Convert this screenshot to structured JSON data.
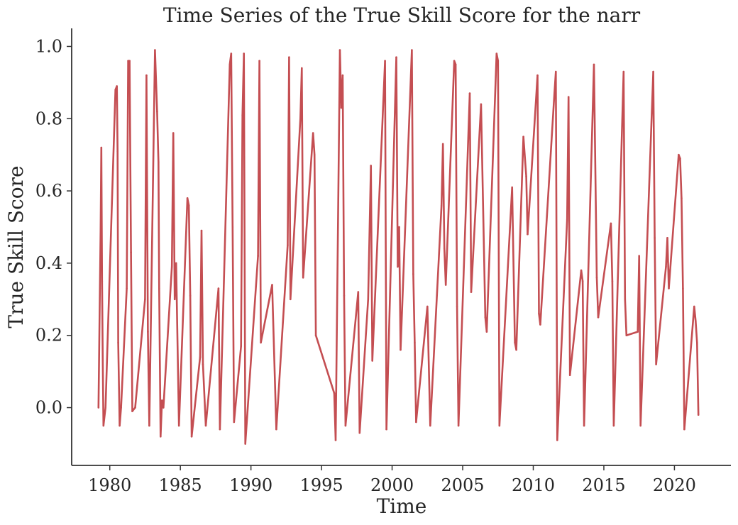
{
  "chart_data": {
    "type": "line",
    "title": "Time Series of the True Skill Score for the narr",
    "xlabel": "Time",
    "ylabel": "True Skill Score",
    "xlim": [
      1977.3,
      2024.0
    ],
    "ylim": [
      -0.16,
      1.05
    ],
    "xticks": [
      1980,
      1985,
      1990,
      1995,
      2000,
      2005,
      2010,
      2015,
      2020
    ],
    "xtick_labels": [
      "1980",
      "1985",
      "1990",
      "1995",
      "2000",
      "2005",
      "2010",
      "2015",
      "2020"
    ],
    "yticks": [
      0.0,
      0.2,
      0.4,
      0.6,
      0.8,
      1.0
    ],
    "ytick_labels": [
      "0.0",
      "0.2",
      "0.4",
      "0.6",
      "0.8",
      "1.0"
    ],
    "grid": false,
    "color": "#c44e52",
    "series": [
      {
        "x": [
          1979.2,
          1979.3,
          1979.35,
          1979.4,
          1979.45,
          1979.5,
          1979.55,
          1979.7,
          1980.4,
          1980.5,
          1980.55,
          1980.6,
          1980.7,
          1980.8,
          1981.2,
          1981.3,
          1981.4,
          1981.5,
          1981.6,
          1981.8,
          1982.5,
          1982.6,
          1982.7,
          1982.8,
          1983.2,
          1983.35,
          1983.45,
          1983.5,
          1983.6,
          1983.7,
          1983.8,
          1984.4,
          1984.5,
          1984.6,
          1984.7,
          1984.9,
          1985.5,
          1985.6,
          1985.7,
          1985.8,
          1986.4,
          1986.5,
          1986.6,
          1986.8,
          1987.7,
          1987.8,
          1988.5,
          1988.6,
          1988.7,
          1988.8,
          1989.3,
          1989.4,
          1989.5,
          1989.6,
          1990.5,
          1990.6,
          1990.7,
          1991.5,
          1991.8,
          1992.6,
          1992.7,
          1992.8,
          1993.5,
          1993.6,
          1993.7,
          1994.4,
          1994.5,
          1994.6,
          1995.9,
          1996.0,
          1996.3,
          1996.4,
          1996.5,
          1996.6,
          1996.7,
          1997.6,
          1997.7,
          1998.3,
          1998.5,
          1998.6,
          1999.5,
          1999.6,
          2000.3,
          2000.4,
          2000.5,
          2000.6,
          2001.4,
          2001.5,
          2001.6,
          2001.7,
          2002.5,
          2002.7,
          2003.5,
          2003.6,
          2003.7,
          2003.8,
          2004.4,
          2004.5,
          2004.6,
          2004.7,
          2005.5,
          2005.6,
          2006.3,
          2006.6,
          2006.7,
          2007.4,
          2007.5,
          2007.6,
          2008.5,
          2008.7,
          2008.8,
          2009.3,
          2009.5,
          2009.6,
          2010.3,
          2010.4,
          2010.5,
          2011.5,
          2011.6,
          2011.7,
          2012.4,
          2012.5,
          2012.6,
          2013.4,
          2013.5,
          2013.6,
          2014.3,
          2014.5,
          2014.6,
          2015.5,
          2015.6,
          2015.7,
          2016.4,
          2016.5,
          2016.6,
          2017.4,
          2017.5,
          2017.6,
          2018.5,
          2018.6,
          2018.7,
          2019.4,
          2019.5,
          2019.6,
          2020.3,
          2020.4,
          2020.5,
          2020.6,
          2020.7,
          2021.4,
          2021.5,
          2021.6,
          2021.7
        ],
        "y": [
          0.0,
          0.33,
          0.49,
          0.72,
          0.35,
          0.13,
          -0.05,
          0.0,
          0.88,
          0.89,
          0.71,
          0.18,
          -0.05,
          0.0,
          0.33,
          0.96,
          0.96,
          0.43,
          -0.01,
          0.0,
          0.3,
          0.92,
          0.21,
          -0.05,
          0.99,
          0.82,
          0.68,
          0.33,
          -0.08,
          0.02,
          0.0,
          0.39,
          0.76,
          0.3,
          0.4,
          -0.05,
          0.58,
          0.56,
          0.31,
          -0.08,
          0.14,
          0.49,
          0.12,
          -0.05,
          0.33,
          -0.06,
          0.95,
          0.98,
          0.5,
          -0.04,
          0.17,
          0.81,
          0.98,
          -0.1,
          0.42,
          0.96,
          0.18,
          0.34,
          -0.06,
          0.45,
          0.97,
          0.3,
          0.8,
          0.94,
          0.36,
          0.76,
          0.7,
          0.2,
          0.04,
          -0.09,
          0.99,
          0.83,
          0.92,
          0.31,
          -0.05,
          0.32,
          -0.07,
          0.3,
          0.67,
          0.13,
          0.96,
          -0.06,
          0.97,
          0.39,
          0.5,
          0.16,
          0.99,
          0.37,
          0.18,
          -0.04,
          0.28,
          -0.05,
          0.56,
          0.73,
          0.44,
          0.34,
          0.96,
          0.95,
          0.28,
          -0.05,
          0.87,
          0.32,
          0.84,
          0.25,
          0.21,
          0.98,
          0.96,
          -0.05,
          0.61,
          0.18,
          0.16,
          0.75,
          0.64,
          0.48,
          0.92,
          0.26,
          0.23,
          0.87,
          0.93,
          -0.09,
          0.52,
          0.86,
          0.09,
          0.38,
          0.35,
          -0.05,
          0.95,
          0.36,
          0.25,
          0.51,
          0.35,
          -0.05,
          0.93,
          0.3,
          0.2,
          0.21,
          0.42,
          -0.05,
          0.93,
          0.47,
          0.12,
          0.39,
          0.47,
          0.33,
          0.7,
          0.69,
          0.58,
          0.33,
          -0.06,
          0.28,
          0.24,
          0.18,
          -0.02
        ]
      }
    ]
  }
}
